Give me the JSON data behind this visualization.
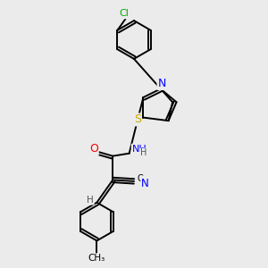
{
  "bg_color": "#ebebeb",
  "bond_color": "#000000",
  "atom_colors": {
    "C": "#000000",
    "N": "#0000ff",
    "O": "#ff0000",
    "S": "#ccaa00",
    "Cl": "#00aa00",
    "H": "#555555"
  },
  "lw": 1.4,
  "fs": 8.0
}
